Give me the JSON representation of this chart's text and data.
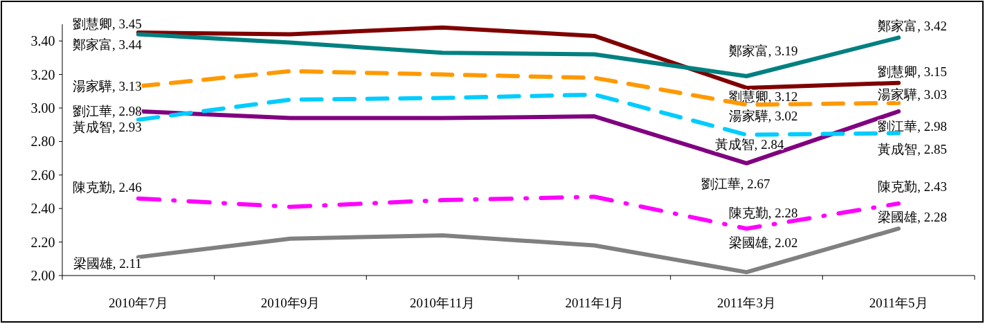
{
  "chart_data": {
    "type": "line",
    "categories": [
      "2010年7月",
      "2010年9月",
      "2010年11月",
      "2011年1月",
      "2011年3月",
      "2011年5月"
    ],
    "ylim": [
      2.0,
      3.5
    ],
    "yticks": [
      {
        "value": 2.0,
        "label": "2.00"
      },
      {
        "value": 2.2,
        "label": "2.20"
      },
      {
        "value": 2.4,
        "label": "2.40"
      },
      {
        "value": 2.6,
        "label": "2.60"
      },
      {
        "value": 2.8,
        "label": "2.80"
      },
      {
        "value": 3.0,
        "label": "3.00"
      },
      {
        "value": 3.2,
        "label": "3.20"
      },
      {
        "value": 3.4,
        "label": "3.40"
      }
    ],
    "grid": false,
    "legend": false,
    "marker": "none",
    "series": [
      {
        "name": "劉慧卿",
        "color": "#800000",
        "line_style": "solid",
        "values": [
          3.45,
          3.44,
          3.48,
          3.43,
          3.12,
          3.15
        ],
        "value_labels": [
          ", 3.45",
          null,
          null,
          null,
          ", 3.12",
          ", 3.15"
        ]
      },
      {
        "name": "鄭家富",
        "color": "#008080",
        "line_style": "solid",
        "values": [
          3.44,
          3.39,
          3.33,
          3.32,
          3.19,
          3.42
        ],
        "value_labels": [
          ", 3.44",
          null,
          null,
          null,
          ", 3.19",
          ", 3.42"
        ]
      },
      {
        "name": "湯家驊",
        "color": "#ff9900",
        "line_style": "dashed",
        "values": [
          3.13,
          3.22,
          3.2,
          3.18,
          3.02,
          3.03
        ],
        "value_labels": [
          ", 3.13",
          null,
          null,
          null,
          ", 3.02",
          ", 3.03"
        ]
      },
      {
        "name": "劉江華",
        "color": "#800080",
        "line_style": "solid",
        "values": [
          2.98,
          2.94,
          2.94,
          2.95,
          2.67,
          2.98
        ],
        "value_labels": [
          ", 2.98",
          null,
          null,
          null,
          ", 2.67",
          ", 2.98"
        ]
      },
      {
        "name": "黃成智",
        "color": "#00ccff",
        "line_style": "dashed",
        "values": [
          2.93,
          3.05,
          3.06,
          3.08,
          2.84,
          2.85
        ],
        "value_labels": [
          ", 2.93",
          null,
          null,
          null,
          ", 2.84",
          ", 2.85"
        ]
      },
      {
        "name": "陳克勤",
        "color": "#ff00ff",
        "line_style": "dashdot",
        "values": [
          2.46,
          2.41,
          2.45,
          2.47,
          2.28,
          2.43
        ],
        "value_labels": [
          ", 2.46",
          null,
          null,
          null,
          ", 2.28",
          ", 2.43"
        ]
      },
      {
        "name": "梁國雄",
        "color": "#808080",
        "line_style": "solid",
        "values": [
          2.11,
          2.22,
          2.24,
          2.18,
          2.02,
          2.28
        ],
        "value_labels": [
          ", 2.11",
          null,
          null,
          null,
          ", 2.02",
          ", 2.28"
        ]
      }
    ]
  }
}
